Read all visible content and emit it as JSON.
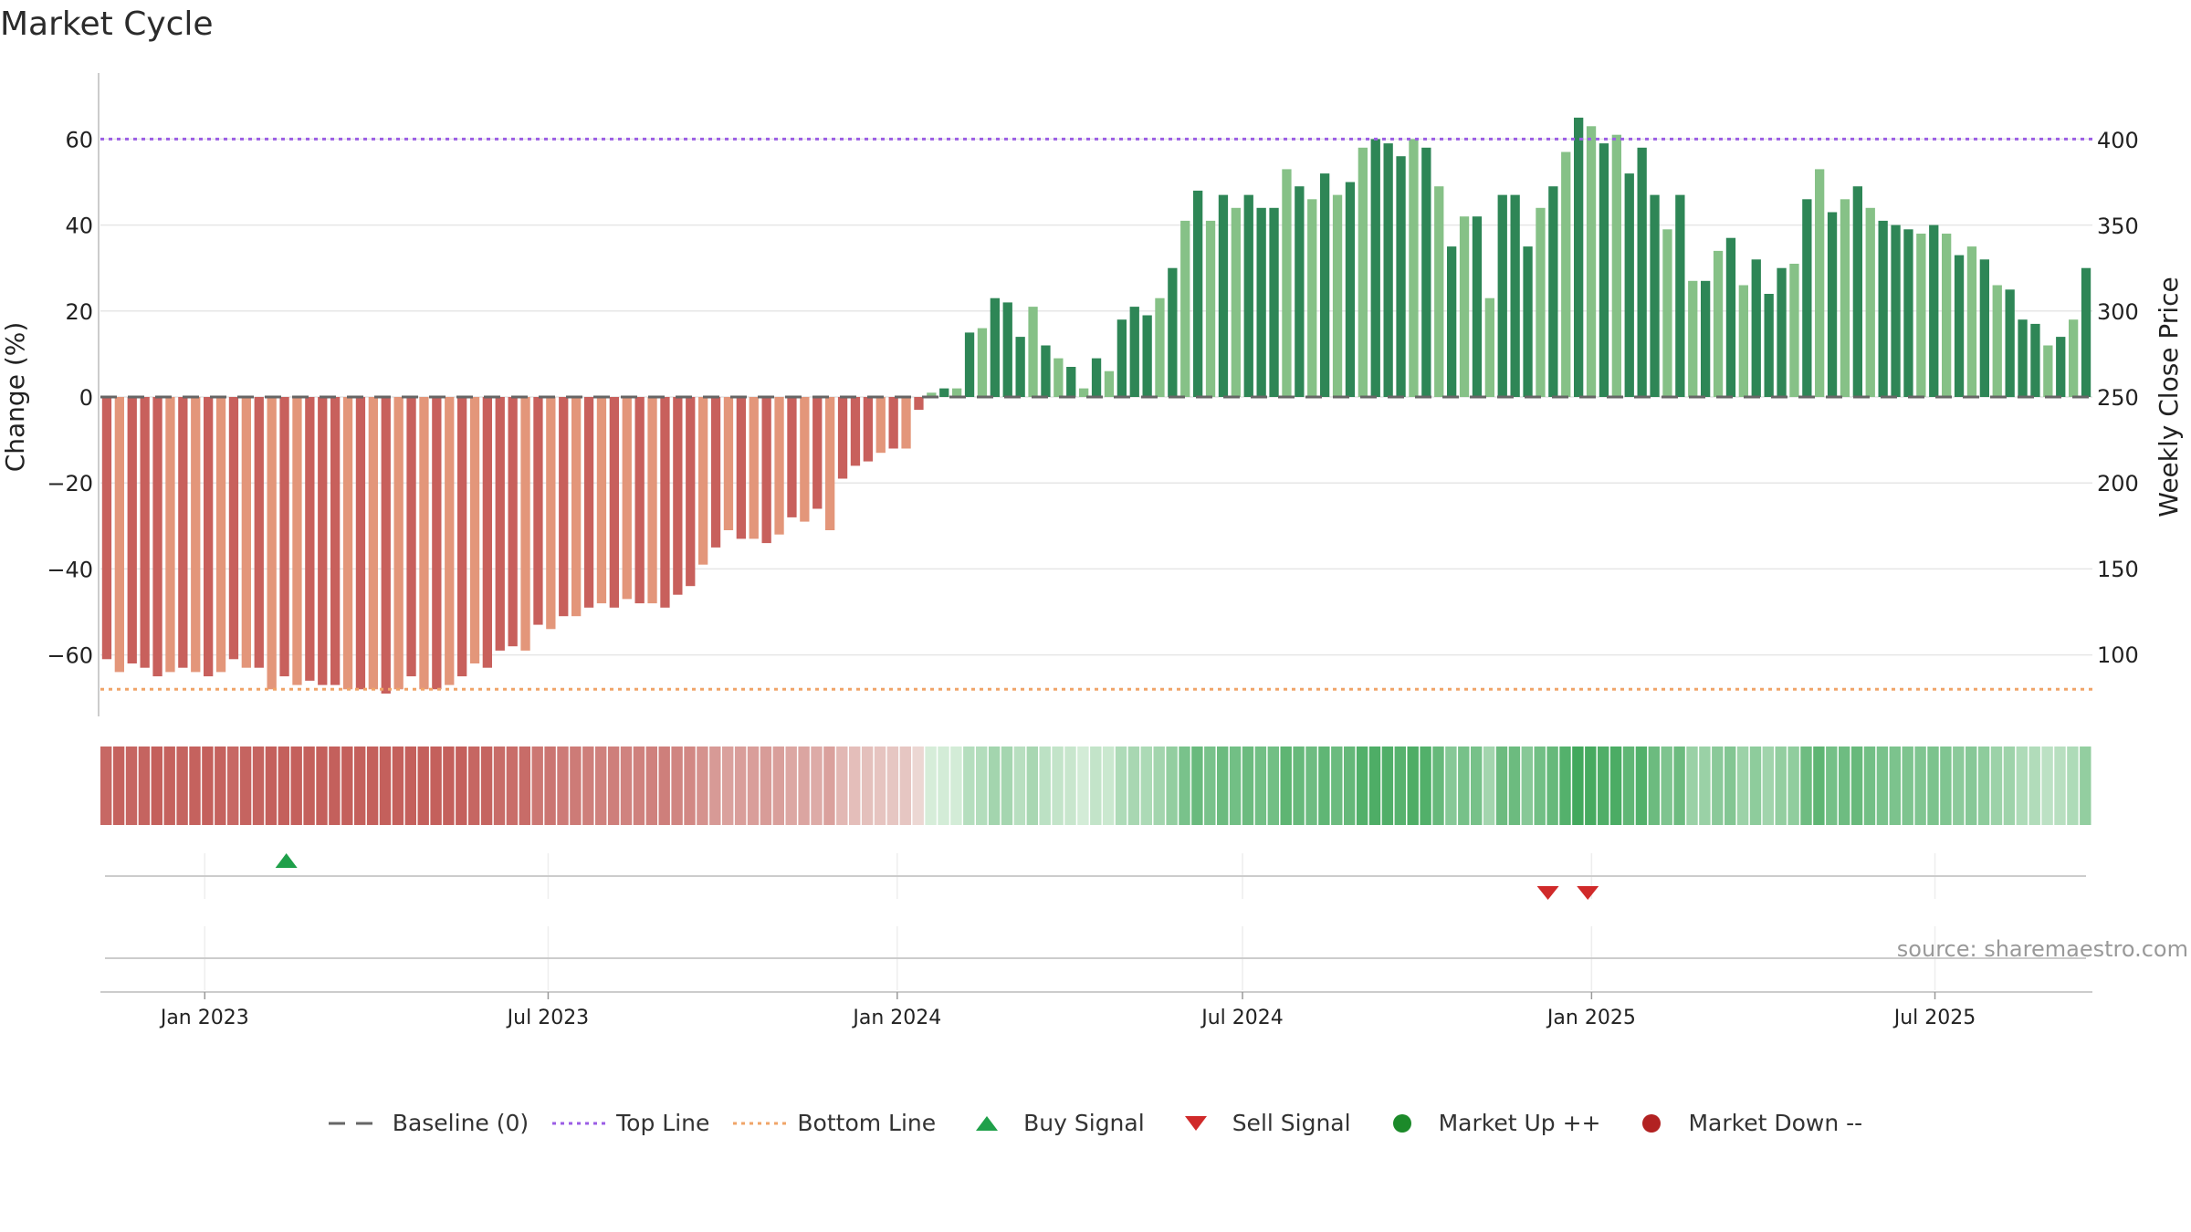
{
  "title": "Market Cycle",
  "source_text": "source: sharemaestro.com",
  "colors": {
    "bar_dark_red": "#c8605c",
    "bar_light_red": "#e3967a",
    "bar_dark_green": "#2e8656",
    "bar_light_green": "#86c187",
    "top_line": "#9b5de5",
    "bottom_line": "#f0a468",
    "baseline": "#666666",
    "buy": "#1fa04a",
    "sell": "#d02a2a",
    "market_up": "#1c8a2a",
    "market_down": "#b22222"
  },
  "legend": [
    {
      "key": "baseline",
      "label": "Baseline (0)",
      "icon": "dash-line-icon"
    },
    {
      "key": "top",
      "label": "Top Line",
      "icon": "dotted-line-icon"
    },
    {
      "key": "bottom",
      "label": "Bottom Line",
      "icon": "dotted-line-icon"
    },
    {
      "key": "buy",
      "label": "Buy Signal",
      "icon": "triangle-up-icon"
    },
    {
      "key": "sell",
      "label": "Sell Signal",
      "icon": "triangle-down-icon"
    },
    {
      "key": "up",
      "label": "Market Up ++",
      "icon": "circle-icon"
    },
    {
      "key": "down",
      "label": "Market Down --",
      "icon": "circle-icon"
    }
  ],
  "chart_data": {
    "type": "bar",
    "title": "Market Cycle",
    "ylabel": "Change (%)",
    "y2label": "Weekly Close Price",
    "ylim": [
      -75,
      75
    ],
    "yticks": [
      60,
      40,
      20,
      0,
      -20,
      -40,
      -60
    ],
    "ytick_labels": [
      "60",
      "40",
      "20",
      "0",
      "−20",
      "−40",
      "−60"
    ],
    "y2ticks": [
      400,
      350,
      300,
      250,
      200,
      150,
      100
    ],
    "y2ticks_labels": [
      "400",
      "350",
      "300",
      "250",
      "200",
      "150",
      "100"
    ],
    "xlim": [
      "2022-11-07",
      "2025-09-22"
    ],
    "xticks": [
      {
        "date": "2023-01-01",
        "label": "Jan 2023"
      },
      {
        "date": "2023-07-01",
        "label": "Jul 2023"
      },
      {
        "date": "2024-01-01",
        "label": "Jan 2024"
      },
      {
        "date": "2024-07-01",
        "label": "Jul 2024"
      },
      {
        "date": "2025-01-01",
        "label": "Jan 2025"
      },
      {
        "date": "2025-07-01",
        "label": "Jul 2025"
      }
    ],
    "top_line": 60,
    "bottom_line": -68,
    "baseline": 0,
    "series": [
      {
        "name": "Change (%)",
        "values": [
          -61,
          -64,
          -62,
          -63,
          -65,
          -64,
          -63,
          -64,
          -65,
          -64,
          -61,
          -63,
          -63,
          -68,
          -65,
          -67,
          -66,
          -67,
          -67,
          -68,
          -68,
          -68,
          -69,
          -68,
          -65,
          -68,
          -68,
          -67,
          -65,
          -62,
          -63,
          -59,
          -58,
          -59,
          -53,
          -54,
          -51,
          -51,
          -49,
          -48,
          -49,
          -47,
          -48,
          -48,
          -49,
          -46,
          -44,
          -39,
          -35,
          -31,
          -33,
          -33,
          -34,
          -32,
          -28,
          -29,
          -26,
          -31,
          -19,
          -16,
          -15,
          -13,
          -12,
          -12,
          -3,
          1,
          2,
          2,
          15,
          16,
          23,
          22,
          14,
          21,
          12,
          9,
          7,
          2,
          9,
          6,
          18,
          21,
          19,
          23,
          30,
          41,
          48,
          41,
          47,
          44,
          47,
          44,
          44,
          53,
          49,
          46,
          52,
          47,
          50,
          58,
          60,
          59,
          56,
          60,
          58,
          49,
          35,
          42,
          42,
          23,
          47,
          47,
          35,
          44,
          49,
          57,
          65,
          63,
          59,
          61,
          52,
          58,
          47,
          39,
          47,
          27,
          27,
          34,
          37,
          26,
          32,
          24,
          30,
          31,
          46,
          53,
          43,
          46,
          49,
          44,
          41,
          40,
          39,
          38,
          40,
          38,
          33,
          35,
          32,
          26,
          25,
          18,
          17,
          12,
          14,
          18,
          30
        ]
      }
    ],
    "buy_signals": [
      "2023-02-13"
    ],
    "sell_signals": [
      "2024-12-09",
      "2024-12-30"
    ]
  }
}
